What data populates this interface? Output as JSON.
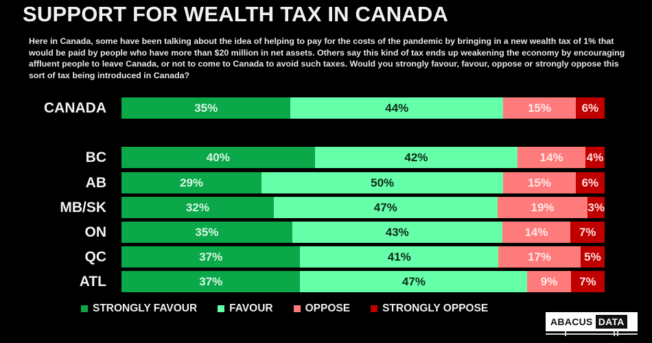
{
  "title": "SUPPORT FOR WEALTH TAX IN CANADA",
  "question": "Here in Canada, some have been talking about the idea of helping to pay for the costs of the pandemic by bringing in a new wealth tax of 1% that would be paid by people who have more than $20 million in net assets. Others say this kind of tax ends up weakening the economy by encouraging affluent people to leave Canada, or not to come to Canada to avoid such taxes. Would you strongly favour, favour, oppose or strongly oppose this sort of tax being introduced in Canada?",
  "colors": {
    "strongly_favour": "#0ba84a",
    "favour": "#66ffaa",
    "oppose": "#ff7a7a",
    "strongly_oppose": "#c00000",
    "background": "#000000"
  },
  "legend": [
    {
      "label": "STRONGLY FAVOUR",
      "color": "#0ba84a"
    },
    {
      "label": "FAVOUR",
      "color": "#66ffaa"
    },
    {
      "label": "OPPOSE",
      "color": "#ff7a7a"
    },
    {
      "label": "STRONGLY OPPOSE",
      "color": "#c00000"
    }
  ],
  "logo": {
    "part1": "ABACUS",
    "part2": "DATA"
  },
  "rows": [
    {
      "label": "CANADA",
      "values": [
        35,
        44,
        15,
        6
      ],
      "labels": [
        "35%",
        "44%",
        "15%",
        "6%"
      ]
    },
    {
      "label": "BC",
      "values": [
        40,
        42,
        14,
        4
      ],
      "labels": [
        "40%",
        "42%",
        "14%",
        "4%"
      ]
    },
    {
      "label": "AB",
      "values": [
        29,
        50,
        15,
        6
      ],
      "labels": [
        "29%",
        "50%",
        "15%",
        "6%"
      ]
    },
    {
      "label": "MB/SK",
      "values": [
        32,
        47,
        19,
        3
      ],
      "labels": [
        "32%",
        "47%",
        "19%",
        "3%"
      ]
    },
    {
      "label": "ON",
      "values": [
        35,
        43,
        14,
        7
      ],
      "labels": [
        "35%",
        "43%",
        "14%",
        "7%"
      ]
    },
    {
      "label": "QC",
      "values": [
        37,
        41,
        17,
        5
      ],
      "labels": [
        "37%",
        "41%",
        "17%",
        "5%"
      ]
    },
    {
      "label": "ATL",
      "values": [
        37,
        47,
        9,
        7
      ],
      "labels": [
        "37%",
        "47%",
        "9%",
        "7%"
      ]
    }
  ],
  "chart_data": {
    "type": "bar",
    "orientation": "horizontal",
    "stacked": true,
    "title": "SUPPORT FOR WEALTH TAX IN CANADA",
    "subtitle": "Here in Canada, some have been talking about the idea of helping to pay for the costs of the pandemic by bringing in a new wealth tax of 1% that would be paid by people who have more than $20 million in net assets. Others say this kind of tax ends up weakening the economy by encouraging affluent people to leave Canada, or not to come to Canada to avoid such taxes. Would you strongly favour, favour, oppose or strongly oppose this sort of tax being introduced in Canada?",
    "categories": [
      "CANADA",
      "BC",
      "AB",
      "MB/SK",
      "ON",
      "QC",
      "ATL"
    ],
    "series": [
      {
        "name": "STRONGLY FAVOUR",
        "color": "#0ba84a",
        "values": [
          35,
          40,
          29,
          32,
          35,
          37,
          37
        ]
      },
      {
        "name": "FAVOUR",
        "color": "#66ffaa",
        "values": [
          44,
          42,
          50,
          47,
          43,
          41,
          47
        ]
      },
      {
        "name": "OPPOSE",
        "color": "#ff7a7a",
        "values": [
          15,
          14,
          15,
          19,
          14,
          17,
          9
        ]
      },
      {
        "name": "STRONGLY OPPOSE",
        "color": "#c00000",
        "values": [
          6,
          4,
          6,
          3,
          7,
          5,
          7
        ]
      }
    ],
    "unit": "%",
    "xlabel": "",
    "ylabel": "",
    "xlim": [
      0,
      100
    ],
    "grid": false,
    "data_labels": true,
    "legend_position": "bottom",
    "source_logo": "ABACUS DATA"
  }
}
